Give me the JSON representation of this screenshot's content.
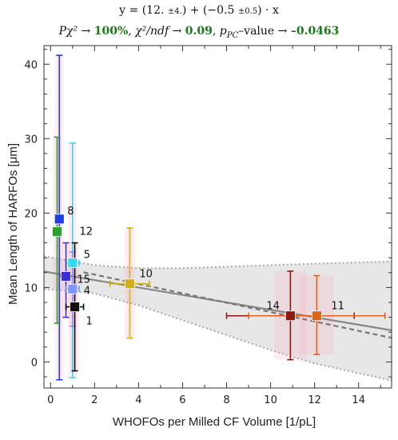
{
  "header": {
    "fit_equation": "y = (12. ±4.) + (−0.5 ±0.5) · x",
    "eq_prefix": "y = (12.",
    "eq_err1": "±4.",
    "eq_mid": ") + (−0.5",
    "eq_err2": "±0.5",
    "eq_suffix": ") · x",
    "p_chi2_label": "Pχ² → ",
    "p_chi2_value": "100%",
    "chi2_ndf_label": ",  χ²/ndf → ",
    "chi2_ndf_value": "0.09",
    "p_pc_label": ",  p",
    "p_pc_sub": "PC",
    "p_pc_suffix": "–value → ",
    "p_pc_value": "–0.0463"
  },
  "chart_data": {
    "type": "scatter",
    "xlabel": "WHOFOs per Milled CF Volume [1/pL]",
    "ylabel": "Mean Length of HARFOs [μm]",
    "xlim": [
      -0.3,
      15.5
    ],
    "ylim": [
      -3.5,
      42.5
    ],
    "xticks": [
      0,
      2,
      4,
      6,
      8,
      10,
      12,
      14
    ],
    "yticks": [
      0,
      10,
      20,
      30,
      40
    ],
    "grid": false,
    "fit": {
      "intercept": 12.0,
      "slope": -0.5
    },
    "fit_band_upper": [
      [
        -0.3,
        14.2
      ],
      [
        2,
        13.0
      ],
      [
        4,
        12.6
      ],
      [
        6,
        12.6
      ],
      [
        8,
        12.8
      ],
      [
        10,
        13.0
      ],
      [
        12,
        13.2
      ],
      [
        15.5,
        13.5
      ]
    ],
    "fit_band_lower": [
      [
        -0.3,
        9.8
      ],
      [
        2,
        9.2
      ],
      [
        4,
        7.6
      ],
      [
        6,
        5.6
      ],
      [
        8,
        3.6
      ],
      [
        10,
        1.6
      ],
      [
        12,
        -0.2
      ],
      [
        15.5,
        -2.5
      ]
    ],
    "points": [
      {
        "label": "8",
        "x": 0.4,
        "y": 19.2,
        "xerr": 0.15,
        "yerr_low": 21.6,
        "yerr_high": 22.0,
        "color": "#1f3fe0",
        "label_dx": 10,
        "label_dy": -10,
        "shade": true
      },
      {
        "label": "12",
        "x": 0.3,
        "y": 17.5,
        "xerr": 0.15,
        "yerr_low": 12.3,
        "yerr_high": 12.7,
        "color": "#2ea02c",
        "label_dx": 28,
        "label_dy": 0,
        "shade": true
      },
      {
        "label": "5",
        "x": 1.0,
        "y": 13.3,
        "xerr": 0.3,
        "yerr_low": 15.4,
        "yerr_high": 16.1,
        "color": "#39d7f0",
        "label_dx": 14,
        "label_dy": -10,
        "shade": true
      },
      {
        "label": "15",
        "x": 0.7,
        "y": 11.5,
        "xerr": 0.3,
        "yerr_low": 5.5,
        "yerr_high": 4.5,
        "color": "#3b2fd6",
        "label_dx": 14,
        "label_dy": 4,
        "shade": true
      },
      {
        "label": "4",
        "x": 1.0,
        "y": 9.8,
        "xerr": 0.3,
        "yerr_low": 5.0,
        "yerr_high": 5.0,
        "color": "#7f95ff",
        "label_dx": 14,
        "label_dy": 2,
        "shade": true
      },
      {
        "label": "1",
        "x": 1.1,
        "y": 7.4,
        "xerr": 0.4,
        "yerr_low": 8.6,
        "yerr_high": 8.6,
        "color": "#111111",
        "label_dx": 14,
        "label_dy": 18,
        "shade": true
      },
      {
        "label": "10",
        "x": 3.6,
        "y": 10.5,
        "xerr": 0.9,
        "yerr_low": 7.3,
        "yerr_high": 7.5,
        "color": "#d6ad16",
        "label_dx": 12,
        "label_dy": -12,
        "shade": true
      },
      {
        "label": "14",
        "x": 10.9,
        "y": 6.2,
        "xerr": 2.9,
        "yerr_low": 5.9,
        "yerr_high": 6.0,
        "color": "#8b1a10",
        "label_dx": -30,
        "label_dy": -12,
        "shade": true
      },
      {
        "label": "11",
        "x": 12.1,
        "y": 6.2,
        "xerr": 3.1,
        "yerr_low": 5.2,
        "yerr_high": 5.4,
        "color": "#e0631c",
        "label_dx": 18,
        "label_dy": -12,
        "shade": true
      }
    ]
  }
}
